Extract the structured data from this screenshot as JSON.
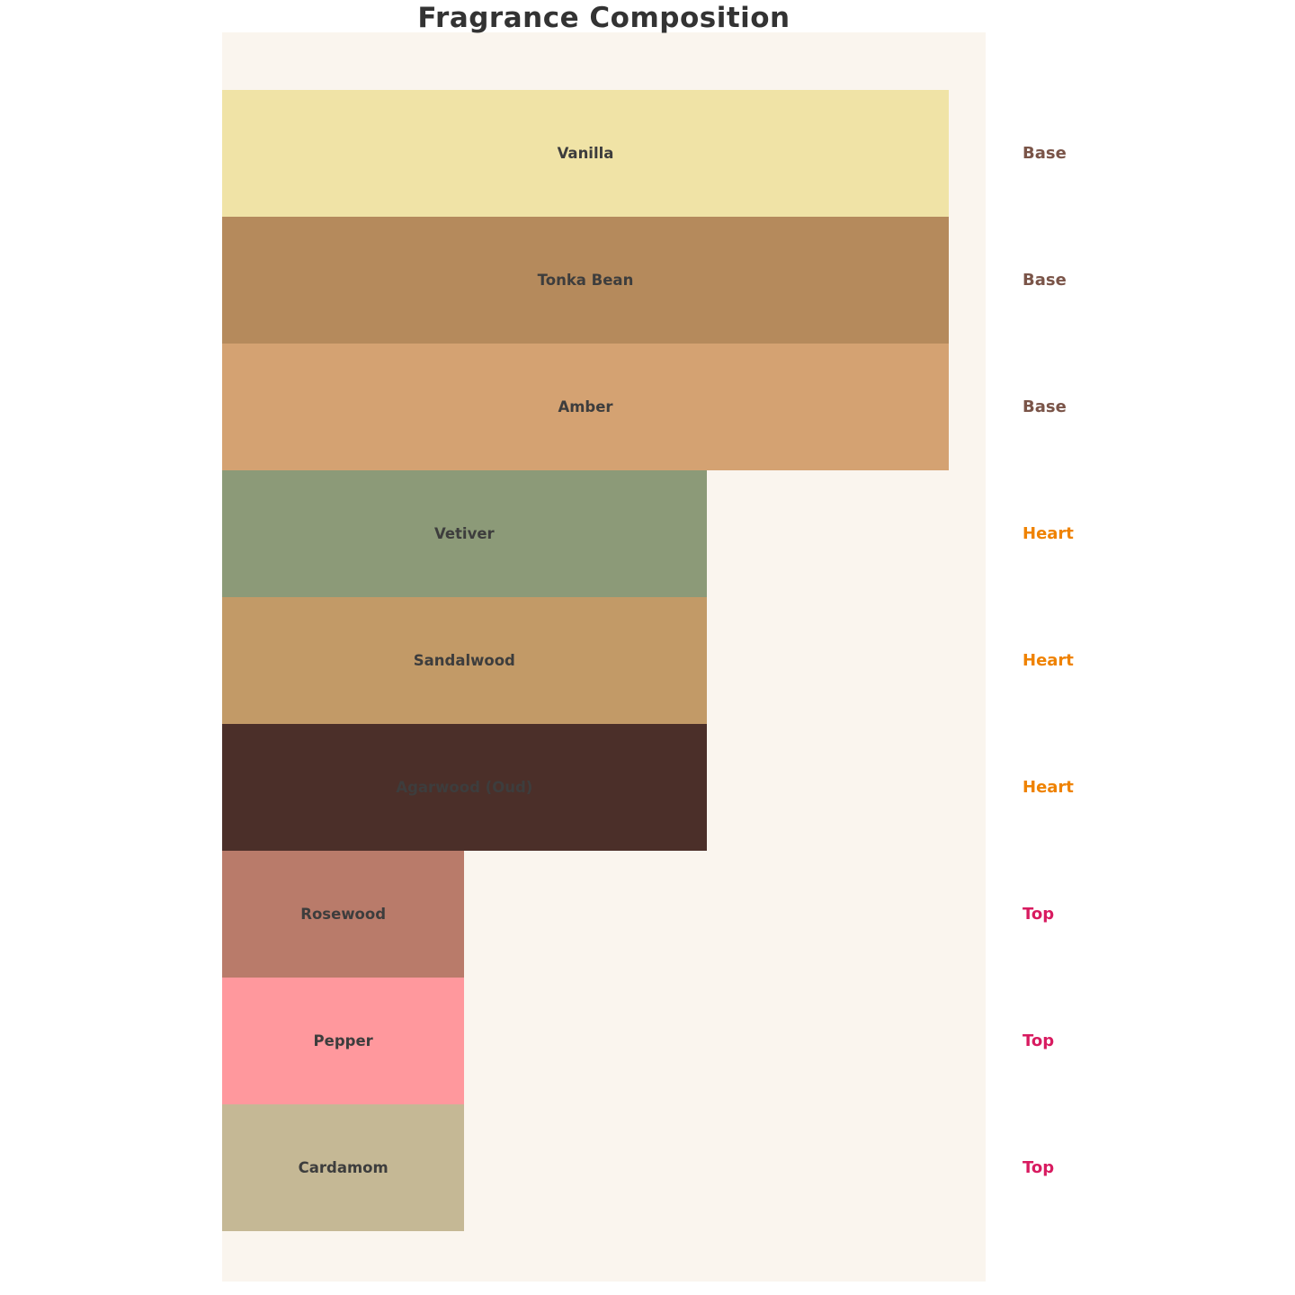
{
  "title": "Fragrance Composition",
  "panel_bg": "#faf5ee",
  "chart_data": {
    "type": "bar",
    "orientation": "horizontal",
    "title": "Fragrance Composition",
    "grid": false,
    "legend_position": "right",
    "value_max": 30,
    "note_colors": {
      "Base": "#7a5448",
      "Heart": "#ef8200",
      "Top": "#d81b60"
    },
    "rows": [
      {
        "ingredient": "Vanilla",
        "note": "Base",
        "value": 30,
        "color": "#f0e3a6"
      },
      {
        "ingredient": "Tonka Bean",
        "note": "Base",
        "value": 30,
        "color": "#b58a5c"
      },
      {
        "ingredient": "Amber",
        "note": "Base",
        "value": 30,
        "color": "#d4a272"
      },
      {
        "ingredient": "Vetiver",
        "note": "Heart",
        "value": 20,
        "color": "#8c9a78"
      },
      {
        "ingredient": "Sandalwood",
        "note": "Heart",
        "value": 20,
        "color": "#c29a67"
      },
      {
        "ingredient": "Agarwood (Oud)",
        "note": "Heart",
        "value": 20,
        "color": "#4b2f29"
      },
      {
        "ingredient": "Rosewood",
        "note": "Top",
        "value": 10,
        "color": "#b97b6a"
      },
      {
        "ingredient": "Pepper",
        "note": "Top",
        "value": 10,
        "color": "#ff989d"
      },
      {
        "ingredient": "Cardamom",
        "note": "Top",
        "value": 10,
        "color": "#c5b895"
      }
    ]
  }
}
